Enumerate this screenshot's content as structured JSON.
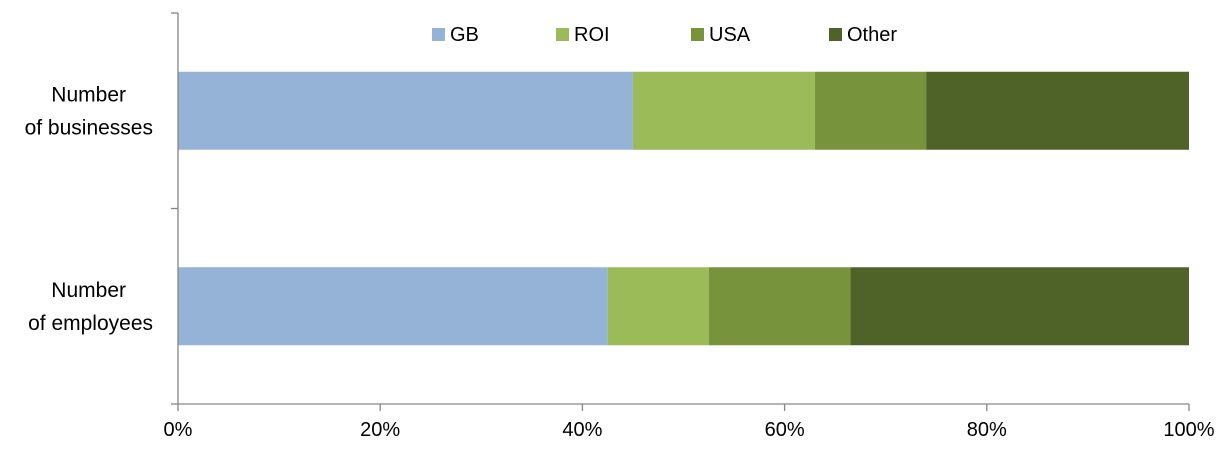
{
  "chart_data": {
    "type": "bar",
    "orientation": "horizontal",
    "stacked": "percent",
    "categories": [
      "Number of businesses",
      "Number of employees"
    ],
    "category_lines": [
      [
        "Number",
        "of businesses"
      ],
      [
        "Number",
        "of employees"
      ]
    ],
    "series": [
      {
        "name": "GB",
        "color": "#95b3d7",
        "values": [
          45.0,
          42.5
        ]
      },
      {
        "name": "ROI",
        "color": "#9bbb59",
        "values": [
          18.0,
          10.0
        ]
      },
      {
        "name": "USA",
        "color": "#77933c",
        "values": [
          11.0,
          14.0
        ]
      },
      {
        "name": "Other",
        "color": "#4f6228",
        "values": [
          26.0,
          33.5
        ]
      }
    ],
    "xlim": [
      0,
      100
    ],
    "xticks": [
      0,
      20,
      40,
      60,
      80,
      100
    ],
    "xtick_labels": [
      "0%",
      "20%",
      "40%",
      "60%",
      "80%",
      "100%"
    ],
    "title": "",
    "xlabel": "",
    "ylabel": "",
    "grid": false,
    "legend_position": "top"
  }
}
